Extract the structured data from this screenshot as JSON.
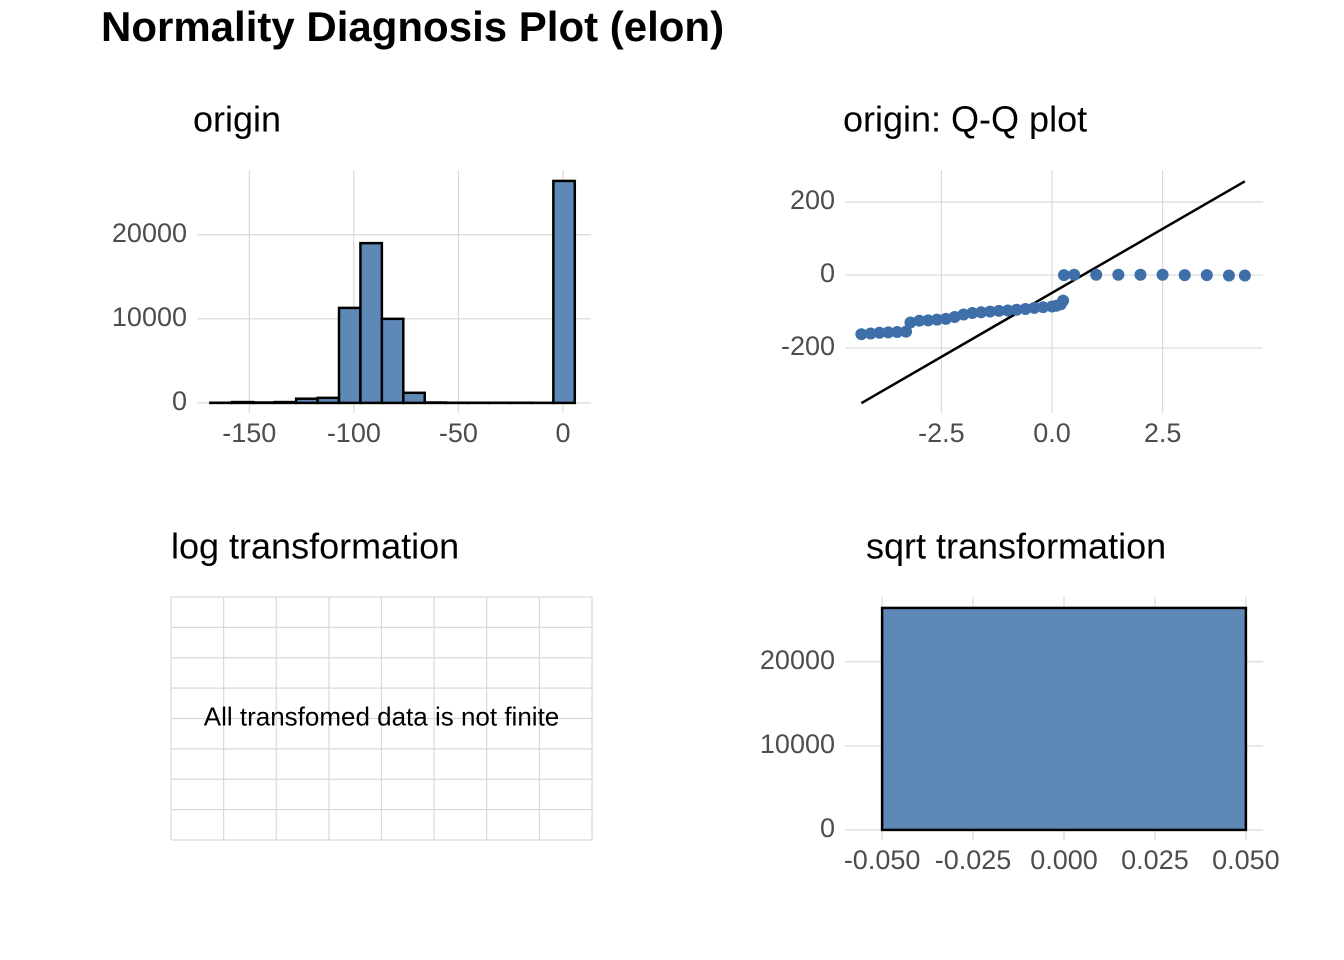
{
  "title": "Normality Diagnosis Plot (elon)",
  "chart_data": [
    {
      "type": "histogram",
      "title": "origin",
      "bins": [
        -168.6,
        -158.35,
        -148.1,
        -137.85,
        -127.6,
        -117.35,
        -107.1,
        -96.85,
        -86.6,
        -76.35,
        -66.1,
        -55.85,
        -45.6,
        -35.35,
        -25.1,
        -14.85,
        -4.6,
        5.65
      ],
      "values": [
        20,
        100,
        50,
        100,
        500,
        600,
        11300,
        19000,
        10000,
        1200,
        50,
        20,
        20,
        20,
        20,
        10,
        26400
      ],
      "color": "#5e89b6",
      "xlim": [
        -175,
        13.4
      ],
      "xticks": [
        -150,
        -100,
        -50,
        0
      ],
      "ylim": [
        -1200,
        27700
      ],
      "yticks": [
        0,
        10000,
        20000
      ],
      "grid": true
    },
    {
      "type": "qq",
      "title": "origin: Q-Q plot",
      "x": [
        -4.31,
        -4.1,
        -3.9,
        -3.7,
        -3.5,
        -3.3,
        -3.2,
        -3.0,
        -2.8,
        -2.6,
        -2.4,
        -2.2,
        -2.0,
        -1.8,
        -1.6,
        -1.4,
        -1.2,
        -1.0,
        -0.8,
        -0.6,
        -0.4,
        -0.2,
        0.0,
        0.1,
        0.2,
        0.25,
        0.27,
        0.5,
        1.0,
        1.5,
        2.0,
        2.5,
        3.0,
        3.5,
        4.0,
        4.36
      ],
      "values": [
        -162,
        -160,
        -158,
        -157,
        -156,
        -155,
        -130,
        -125,
        -124,
        -122,
        -120,
        -115,
        -108,
        -104,
        -102,
        -100,
        -98,
        -97,
        -95,
        -93,
        -90,
        -88,
        -86,
        -84,
        -80,
        -70,
        0,
        1,
        1,
        1,
        1,
        1,
        0,
        0,
        -1,
        -1
      ],
      "color": "#3f6fa8",
      "qq_line": {
        "x": [
          -4.31,
          4.36
        ],
        "y": [
          -351,
          257
        ],
        "color": "#000000"
      },
      "xlim": [
        -4.68,
        4.77
      ],
      "xticks": [
        -2.5,
        {
          "value": 0,
          "label": "0.0"
        },
        2.5
      ],
      "ylim": [
        -378,
        288
      ],
      "yticks": [
        -200,
        0,
        200
      ],
      "grid": true
    },
    {
      "type": "empty",
      "title": "log transformation",
      "annotation": "All transfomed data is not finite",
      "grid": true
    },
    {
      "type": "histogram",
      "title": "sqrt transformation",
      "bins": [
        -0.05,
        0.05
      ],
      "values": [
        26400
      ],
      "color": "#5e89b6",
      "xlim": [
        -0.0602,
        0.0547
      ],
      "xticks": [
        {
          "value": -0.05,
          "label": "-0.050"
        },
        {
          "value": -0.025,
          "label": "-0.025"
        },
        {
          "value": 0,
          "label": "0.000"
        },
        {
          "value": 0.025,
          "label": "0.025"
        },
        {
          "value": 0.05,
          "label": "0.050"
        }
      ],
      "ylim": [
        -1200,
        27700
      ],
      "yticks": [
        0,
        10000,
        20000
      ],
      "grid": true
    }
  ]
}
